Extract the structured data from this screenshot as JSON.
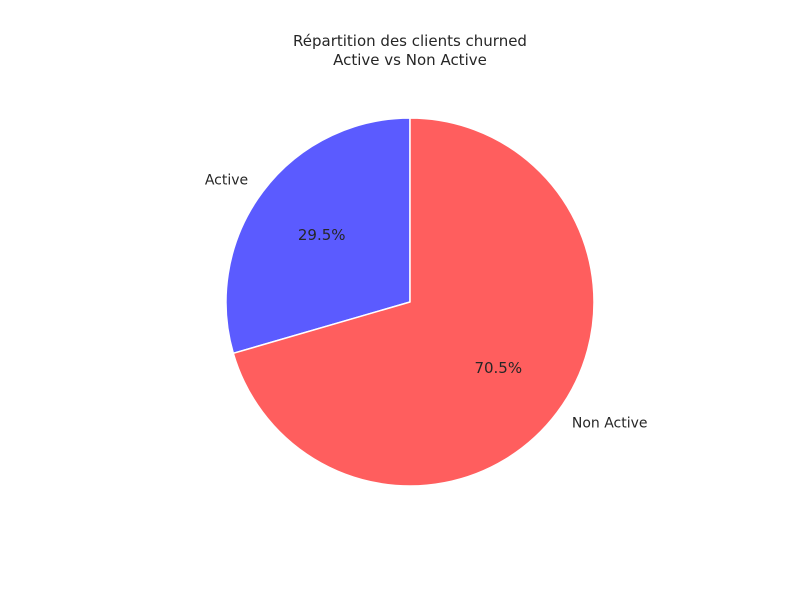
{
  "chart_data": {
    "type": "pie",
    "title": "Répartition des clients churned",
    "subtitle": "Active vs Non Active",
    "start_angle_deg": 90,
    "direction": "counterclockwise",
    "slices": [
      {
        "label": "Active",
        "value": 29.5,
        "pct_label": "29.5%",
        "color": "#5b5bff"
      },
      {
        "label": "Non Active",
        "value": 70.5,
        "pct_label": "70.5%",
        "color": "#ff5e5e"
      }
    ],
    "edge_color": "#ffffff",
    "legend": "none"
  }
}
